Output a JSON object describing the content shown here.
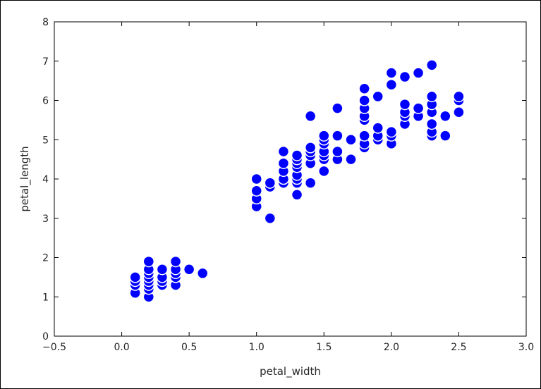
{
  "chart_data": {
    "type": "scatter",
    "xlabel": "petal_width",
    "ylabel": "petal_length",
    "xlim": [
      -0.5,
      3.0
    ],
    "ylim": [
      0,
      8
    ],
    "xticks": [
      "−0.5",
      "0.0",
      "0.5",
      "1.0",
      "1.5",
      "2.0",
      "2.5",
      "3.0"
    ],
    "yticks": [
      "0",
      "1",
      "2",
      "3",
      "4",
      "5",
      "6",
      "7",
      "8"
    ],
    "grid": false,
    "marker_color": "#0000ff",
    "marker_edge_color": "#ffffff",
    "series": [
      {
        "points": [
          [
            0.1,
            1.1
          ],
          [
            0.1,
            1.3
          ],
          [
            0.1,
            1.4
          ],
          [
            0.1,
            1.5
          ],
          [
            0.2,
            1.0
          ],
          [
            0.2,
            1.2
          ],
          [
            0.2,
            1.3
          ],
          [
            0.2,
            1.4
          ],
          [
            0.2,
            1.5
          ],
          [
            0.2,
            1.6
          ],
          [
            0.2,
            1.7
          ],
          [
            0.2,
            1.9
          ],
          [
            0.3,
            1.3
          ],
          [
            0.3,
            1.4
          ],
          [
            0.3,
            1.5
          ],
          [
            0.3,
            1.7
          ],
          [
            0.4,
            1.3
          ],
          [
            0.4,
            1.5
          ],
          [
            0.4,
            1.6
          ],
          [
            0.4,
            1.7
          ],
          [
            0.4,
            1.9
          ],
          [
            0.5,
            1.7
          ],
          [
            0.6,
            1.6
          ],
          [
            1.0,
            3.3
          ],
          [
            1.0,
            3.5
          ],
          [
            1.0,
            3.7
          ],
          [
            1.0,
            4.0
          ],
          [
            1.1,
            3.0
          ],
          [
            1.1,
            3.8
          ],
          [
            1.1,
            3.9
          ],
          [
            1.2,
            3.9
          ],
          [
            1.2,
            4.0
          ],
          [
            1.2,
            4.2
          ],
          [
            1.2,
            4.4
          ],
          [
            1.2,
            4.7
          ],
          [
            1.3,
            3.6
          ],
          [
            1.3,
            3.9
          ],
          [
            1.3,
            4.0
          ],
          [
            1.3,
            4.1
          ],
          [
            1.3,
            4.3
          ],
          [
            1.3,
            4.4
          ],
          [
            1.3,
            4.5
          ],
          [
            1.3,
            4.6
          ],
          [
            1.4,
            3.9
          ],
          [
            1.4,
            4.4
          ],
          [
            1.4,
            4.6
          ],
          [
            1.4,
            4.7
          ],
          [
            1.4,
            4.8
          ],
          [
            1.4,
            5.6
          ],
          [
            1.5,
            4.2
          ],
          [
            1.5,
            4.5
          ],
          [
            1.5,
            4.6
          ],
          [
            1.5,
            4.7
          ],
          [
            1.5,
            4.9
          ],
          [
            1.5,
            5.0
          ],
          [
            1.5,
            5.1
          ],
          [
            1.6,
            4.5
          ],
          [
            1.6,
            4.7
          ],
          [
            1.6,
            5.1
          ],
          [
            1.6,
            5.8
          ],
          [
            1.7,
            4.5
          ],
          [
            1.7,
            5.0
          ],
          [
            1.8,
            4.8
          ],
          [
            1.8,
            4.9
          ],
          [
            1.8,
            5.1
          ],
          [
            1.8,
            5.5
          ],
          [
            1.8,
            5.6
          ],
          [
            1.8,
            5.8
          ],
          [
            1.8,
            6.0
          ],
          [
            1.8,
            6.3
          ],
          [
            1.9,
            5.0
          ],
          [
            1.9,
            5.1
          ],
          [
            1.9,
            5.3
          ],
          [
            1.9,
            6.1
          ],
          [
            2.0,
            4.9
          ],
          [
            2.0,
            5.1
          ],
          [
            2.0,
            5.2
          ],
          [
            2.0,
            6.4
          ],
          [
            2.0,
            6.7
          ],
          [
            2.1,
            5.4
          ],
          [
            2.1,
            5.6
          ],
          [
            2.1,
            5.7
          ],
          [
            2.1,
            5.9
          ],
          [
            2.1,
            6.6
          ],
          [
            2.2,
            5.6
          ],
          [
            2.2,
            5.8
          ],
          [
            2.2,
            6.7
          ],
          [
            2.3,
            5.1
          ],
          [
            2.3,
            5.2
          ],
          [
            2.3,
            5.4
          ],
          [
            2.3,
            5.7
          ],
          [
            2.3,
            5.9
          ],
          [
            2.3,
            6.1
          ],
          [
            2.3,
            6.9
          ],
          [
            2.4,
            5.1
          ],
          [
            2.4,
            5.6
          ],
          [
            2.5,
            5.7
          ],
          [
            2.5,
            6.0
          ],
          [
            2.5,
            6.1
          ]
        ]
      }
    ]
  }
}
